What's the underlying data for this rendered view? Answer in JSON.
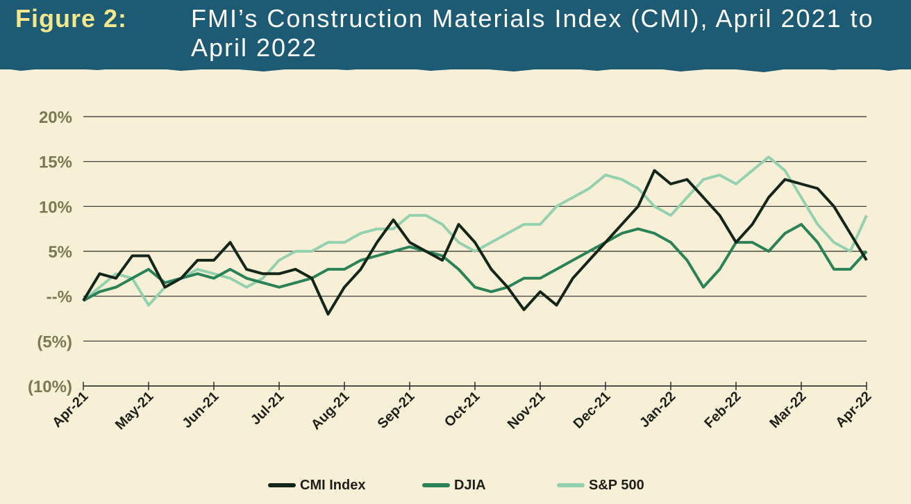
{
  "title": {
    "prefix": "Figure 2:",
    "main": "FMI’s Construction Materials Index (CMI), April 2021 to April 2022"
  },
  "colors": {
    "banner": "#1d5a73",
    "background": "#f7efd6",
    "cmi": "#14261a",
    "djia": "#2a8257",
    "sp500": "#94d1ae",
    "grid": "#2b2b2b",
    "tick_text": "#7a7a52"
  },
  "chart_data": {
    "type": "line",
    "title": "FMI’s Construction Materials Index (CMI), April 2021 to April 2022",
    "xlabel": "",
    "ylabel": "",
    "ylim": [
      -10,
      20
    ],
    "grid": true,
    "legend_position": "bottom",
    "x_categories": [
      "Apr-21",
      "May-21",
      "Jun-21",
      "Jul-21",
      "Aug-21",
      "Sep-21",
      "Oct-21",
      "Nov-21",
      "Dec-21",
      "Jan-22",
      "Feb-22",
      "Mar-22",
      "Apr-22"
    ],
    "y_ticks": [
      {
        "value": 20,
        "label": "20%"
      },
      {
        "value": 15,
        "label": "15%"
      },
      {
        "value": 10,
        "label": "10%"
      },
      {
        "value": 5,
        "label": "5%"
      },
      {
        "value": 0,
        "label": "--%"
      },
      {
        "value": -5,
        "label": "(5%)"
      },
      {
        "value": -10,
        "label": "(10%)"
      }
    ],
    "x_months": [
      0,
      0.25,
      0.5,
      0.75,
      1,
      1.25,
      1.5,
      1.75,
      2,
      2.25,
      2.5,
      2.75,
      3,
      3.25,
      3.5,
      3.75,
      4,
      4.25,
      4.5,
      4.75,
      5,
      5.25,
      5.5,
      5.75,
      6,
      6.25,
      6.5,
      6.75,
      7,
      7.25,
      7.5,
      7.75,
      8,
      8.25,
      8.5,
      8.75,
      9,
      9.25,
      9.5,
      9.75,
      10,
      10.25,
      10.5,
      10.75,
      11,
      11.25,
      11.5,
      11.75,
      12
    ],
    "series": [
      {
        "name": "CMI Index",
        "values": [
          -0.5,
          2.5,
          2,
          4.5,
          4.5,
          1,
          2,
          4,
          4,
          6,
          3,
          2.5,
          2.5,
          3,
          2,
          -2,
          1,
          3,
          6,
          8.5,
          6,
          5,
          4,
          8,
          6,
          3,
          1,
          -1.5,
          0.5,
          -1,
          2,
          4,
          6,
          8,
          10,
          14,
          12.5,
          13,
          11,
          9,
          6,
          8,
          11,
          13,
          12.5,
          12,
          10,
          7,
          4
        ]
      },
      {
        "name": "DJIA",
        "values": [
          -0.5,
          0.5,
          1,
          2,
          3,
          1.5,
          2,
          2.5,
          2,
          3,
          2,
          1.5,
          1,
          1.5,
          2,
          3,
          3,
          4,
          4.5,
          5,
          5.5,
          5,
          4.5,
          3,
          1,
          0.5,
          1,
          2,
          2,
          3,
          4,
          5,
          6,
          7,
          7.5,
          7,
          6,
          4,
          1,
          3,
          6,
          6,
          5,
          7,
          8,
          6,
          3,
          3,
          5
        ]
      },
      {
        "name": "S&P 500",
        "values": [
          -0.5,
          1,
          2.5,
          2,
          -1,
          1,
          2,
          3,
          2.5,
          2,
          1,
          2,
          4,
          5,
          5,
          6,
          6,
          7,
          7.5,
          7.5,
          9,
          9,
          8,
          6,
          5,
          6,
          7,
          8,
          8,
          10,
          11,
          12,
          13.5,
          13,
          12,
          10,
          9,
          11,
          13,
          13.5,
          12.5,
          14,
          15.5,
          14,
          11,
          8,
          6,
          5,
          9
        ]
      }
    ]
  },
  "legend": {
    "items": [
      {
        "label": "CMI Index"
      },
      {
        "label": "DJIA"
      },
      {
        "label": "S&P 500"
      }
    ]
  }
}
